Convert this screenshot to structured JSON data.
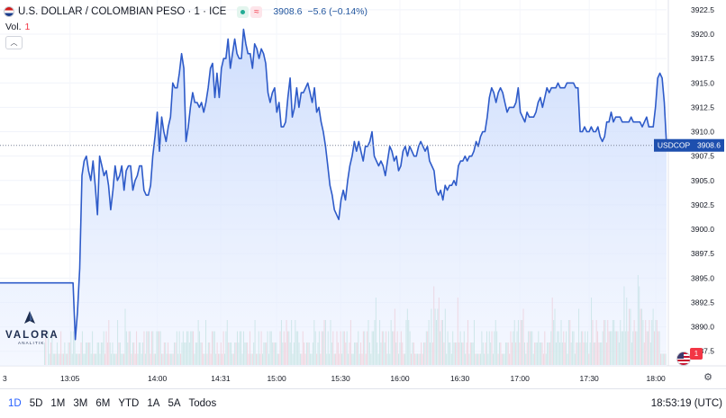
{
  "header": {
    "symbol_title": "U.S. DOLLAR / COLOMBIAN PESO · 1 · ICE",
    "approx_symbol": "≈",
    "last_price": "3908.6",
    "change": "−5.6 (−0.14%)"
  },
  "volume": {
    "label": "Vol.",
    "value": "1"
  },
  "logo": {
    "text": "VALORA",
    "subtext": "ANALITIK"
  },
  "price_tag": {
    "symbol": "USDCOP",
    "value": "3908.6"
  },
  "badge": {
    "count": "1"
  },
  "toolbar": {
    "ranges": [
      "1D",
      "5D",
      "1M",
      "3M",
      "6M",
      "YTD",
      "1A",
      "5A",
      "Todos"
    ],
    "active_range": "1D",
    "clock": "18:53:19 (UTC)"
  },
  "colors": {
    "line": "#2e5bc9",
    "fill": "#dbe7ff",
    "vol_up": "#9fd6c5",
    "vol_down": "#f6a9ae",
    "accent": "#2962ff",
    "tag_bg": "#1e4fae"
  },
  "chart_data": {
    "type": "area",
    "title": "U.S. DOLLAR / COLOMBIAN PESO · 1 · ICE",
    "xlabel": "",
    "ylabel": "",
    "ylim": [
      3886,
      3923.5
    ],
    "grid": true,
    "y_ticks": [
      "3922.5",
      "3920.0",
      "3917.5",
      "3915.0",
      "3912.5",
      "3910.0",
      "3907.5",
      "3905.0",
      "3902.5",
      "3900.0",
      "3897.5",
      "3895.0",
      "3892.5",
      "3890.0",
      "3887.5"
    ],
    "x_ticks": [
      "3",
      "13:05",
      "14:00",
      "14:31",
      "15:00",
      "15:30",
      "16:00",
      "16:30",
      "17:00",
      "17:30",
      "18:00"
    ],
    "last_value": 3908.6,
    "series": [
      {
        "values": [
          3894.5,
          3894.5,
          3894.5,
          3894.5,
          3894.5,
          3894.5,
          3894.5,
          3894.5,
          3894.5,
          3894.5,
          3894.5,
          3894.5,
          3894.5,
          3894.5,
          3894.5,
          3894.5,
          3894.5,
          3894.5,
          3894.5,
          3894.5,
          3894.5,
          3894.5,
          3894.5,
          3894.5,
          3894.5,
          3894.5,
          3894.5,
          3894.5,
          3894.5,
          3894.5,
          3894.5,
          3894.5,
          3894.5,
          3894.5,
          3888.7,
          3891.5,
          3896.0,
          3905.5,
          3907.0,
          3907.5,
          3906.0,
          3905.0,
          3907.0,
          3904.5,
          3901.5,
          3907.5,
          3906.5,
          3905.5,
          3906.0,
          3904.5,
          3902.0,
          3904.0,
          3906.5,
          3905.0,
          3905.5,
          3906.5,
          3904.0,
          3906.0,
          3906.5,
          3906.5,
          3904.0,
          3905.0,
          3905.5,
          3906.5,
          3906.5,
          3904.0,
          3903.5,
          3903.5,
          3904.5,
          3907.5,
          3909.5,
          3912.0,
          3908.0,
          3911.5,
          3910.0,
          3909.0,
          3910.5,
          3911.5,
          3915.0,
          3914.5,
          3914.5,
          3916.0,
          3918.0,
          3916.5,
          3909.0,
          3910.5,
          3912.5,
          3914.0,
          3913.0,
          3913.0,
          3912.5,
          3913.0,
          3912.0,
          3913.0,
          3914.5,
          3916.5,
          3917.0,
          3913.5,
          3916.0,
          3913.5,
          3916.5,
          3917.5,
          3917.5,
          3919.5,
          3916.5,
          3918.0,
          3919.5,
          3918.0,
          3917.5,
          3917.5,
          3920.5,
          3919.0,
          3918.0,
          3918.0,
          3916.5,
          3919.0,
          3918.5,
          3917.5,
          3918.5,
          3918.0,
          3917.0,
          3914.0,
          3913.0,
          3914.0,
          3914.5,
          3912.0,
          3913.0,
          3910.5,
          3910.5,
          3911.0,
          3913.5,
          3915.5,
          3911.5,
          3912.5,
          3914.5,
          3912.5,
          3914.0,
          3914.0,
          3914.5,
          3915.0,
          3914.0,
          3913.0,
          3914.5,
          3912.0,
          3912.5,
          3911.0,
          3910.0,
          3908.5,
          3906.5,
          3904.5,
          3903.5,
          3902.0,
          3901.5,
          3901.0,
          3903.0,
          3904.0,
          3903.0,
          3905.0,
          3906.5,
          3907.5,
          3909.0,
          3908.0,
          3909.0,
          3908.0,
          3907.0,
          3908.5,
          3908.5,
          3909.0,
          3910.0,
          3907.5,
          3907.0,
          3906.5,
          3907.0,
          3906.5,
          3905.5,
          3907.0,
          3908.5,
          3908.0,
          3907.0,
          3907.5,
          3906.0,
          3906.5,
          3908.0,
          3908.5,
          3907.5,
          3908.5,
          3908.0,
          3907.5,
          3907.5,
          3908.5,
          3909.0,
          3908.5,
          3908.0,
          3908.5,
          3907.0,
          3906.5,
          3906.0,
          3904.0,
          3903.5,
          3904.0,
          3903.0,
          3904.5,
          3904.0,
          3904.5,
          3904.5,
          3905.0,
          3904.5,
          3906.5,
          3907.0,
          3907.0,
          3907.5,
          3907.0,
          3907.5,
          3907.5,
          3908.0,
          3909.0,
          3908.5,
          3909.5,
          3910.0,
          3910.0,
          3911.5,
          3913.5,
          3914.5,
          3914.0,
          3913.0,
          3914.0,
          3914.5,
          3914.0,
          3913.0,
          3912.0,
          3912.5,
          3912.5,
          3912.5,
          3913.0,
          3914.5,
          3912.0,
          3911.5,
          3911.0,
          3912.0,
          3911.5,
          3911.5,
          3911.5,
          3912.0,
          3913.0,
          3913.5,
          3912.5,
          3913.5,
          3914.5,
          3914.0,
          3914.5,
          3914.5,
          3914.5,
          3915.0,
          3914.5,
          3914.5,
          3914.5,
          3915.0,
          3915.0,
          3915.0,
          3915.0,
          3914.5,
          3914.5,
          3910.0,
          3910.0,
          3910.5,
          3910.0,
          3910.0,
          3910.5,
          3910.0,
          3910.0,
          3910.5,
          3909.5,
          3909.0,
          3909.5,
          3911.0,
          3911.0,
          3912.0,
          3911.0,
          3911.5,
          3911.5,
          3911.5,
          3911.0,
          3911.0,
          3911.0,
          3911.0,
          3911.5,
          3911.0,
          3911.0,
          3911.0,
          3911.0,
          3910.5,
          3911.0,
          3911.5,
          3910.5,
          3910.5,
          3910.5,
          3912.5,
          3915.5,
          3916.0,
          3915.5,
          3913.0,
          3908.6
        ]
      }
    ],
    "volume": [
      0,
      0,
      0,
      0,
      0,
      0,
      0,
      0,
      0,
      0,
      0,
      0,
      0,
      0,
      0,
      0,
      0,
      0,
      0,
      0,
      0,
      0,
      0,
      0,
      0,
      0,
      0,
      0,
      0,
      0,
      0,
      0,
      0,
      0,
      0,
      2,
      3,
      0,
      3,
      1,
      2,
      3,
      1,
      1,
      1,
      2,
      1,
      1,
      3,
      1,
      1,
      2,
      1,
      1,
      2,
      2,
      3,
      1,
      3,
      3,
      1,
      1,
      1,
      1,
      2,
      3,
      1,
      1,
      2,
      2,
      2,
      2,
      1,
      3,
      1,
      1,
      1,
      2,
      2,
      1,
      2,
      2,
      3,
      1,
      3,
      2,
      4,
      2,
      1,
      2,
      1,
      1,
      1,
      4,
      2,
      2,
      1,
      1,
      1,
      5,
      3,
      2,
      3,
      3,
      1,
      2,
      2,
      1,
      3,
      1,
      2,
      2,
      1,
      2,
      3,
      1,
      3,
      3,
      3,
      1,
      3,
      3,
      1,
      1,
      3,
      3,
      3,
      3,
      1,
      1,
      2,
      2,
      1,
      2,
      1,
      1,
      1,
      1,
      2,
      2,
      3,
      1,
      3,
      1,
      2,
      3,
      2,
      2,
      3,
      3,
      2,
      3,
      3,
      3,
      1,
      2,
      2,
      4,
      3,
      2,
      2,
      1,
      1,
      4,
      1,
      2,
      2,
      1,
      3,
      3,
      3,
      1,
      2,
      1,
      1,
      2,
      1,
      3,
      1,
      3,
      4,
      2,
      2,
      2,
      1,
      1,
      2,
      2,
      3,
      2,
      3,
      3,
      1,
      3,
      2,
      2,
      2,
      1,
      3,
      1,
      1,
      2,
      4,
      1,
      1,
      3,
      1,
      3,
      1,
      2,
      2,
      2,
      3,
      1,
      3,
      3,
      2,
      2,
      2,
      2,
      1,
      1,
      3,
      4,
      2,
      3,
      2,
      4,
      3,
      3,
      2,
      4,
      1,
      2,
      4,
      3,
      3,
      2,
      1,
      1,
      3,
      2,
      1,
      2,
      2,
      2,
      1,
      1,
      2,
      4,
      3,
      1,
      2,
      3,
      1,
      3,
      3,
      4,
      4,
      1,
      3,
      1,
      4,
      2,
      3,
      1,
      1,
      3,
      2,
      1,
      3,
      1,
      3,
      3,
      2,
      3,
      1,
      2,
      4,
      1,
      1,
      2,
      2,
      2,
      3,
      1,
      2,
      1,
      3,
      3,
      1,
      3,
      4,
      2,
      1,
      3,
      3,
      4,
      6,
      2,
      1,
      4,
      2,
      3,
      3,
      2,
      3,
      1,
      3,
      1,
      4,
      3,
      3,
      5,
      2,
      3,
      1,
      2,
      3,
      2,
      1,
      1,
      4,
      5,
      4,
      3,
      1,
      2,
      2,
      1,
      1,
      1,
      1,
      1,
      2,
      1,
      2,
      2,
      3,
      3,
      4,
      2,
      5,
      2,
      7,
      5,
      4,
      5,
      6,
      3,
      4,
      4,
      2,
      5,
      1,
      3,
      2,
      2,
      1,
      3,
      2,
      2,
      2,
      6,
      2,
      3,
      2,
      2,
      3,
      1,
      2,
      4,
      1,
      2,
      2,
      2,
      4,
      1,
      1,
      1,
      1,
      1,
      3,
      2,
      1,
      2,
      3,
      1,
      3,
      2,
      3,
      1,
      3,
      4,
      3,
      1,
      2,
      2,
      1,
      1,
      1,
      2,
      2,
      2,
      1,
      3,
      2,
      3,
      4,
      2,
      3,
      4,
      2,
      4,
      4,
      5,
      2,
      1,
      2,
      3,
      3,
      3,
      3,
      1,
      2,
      2,
      2,
      3,
      2,
      2,
      2,
      1,
      3,
      1,
      2,
      2,
      2,
      3,
      6,
      4,
      5,
      2,
      3,
      3,
      2,
      4,
      2,
      3,
      2,
      3,
      1,
      4,
      4,
      2,
      3,
      3,
      1,
      2,
      2,
      5,
      2,
      3,
      3,
      2,
      3,
      2,
      3,
      1,
      2,
      6,
      4,
      2,
      2,
      4,
      3,
      2,
      2,
      2,
      3,
      4,
      4,
      2,
      4,
      3,
      3,
      3,
      4,
      4,
      3,
      3,
      3,
      2,
      4,
      3,
      3,
      7,
      3,
      6,
      3,
      5,
      5,
      2,
      3,
      4,
      3,
      3,
      8,
      7,
      5,
      5,
      4,
      2,
      4,
      3,
      3,
      4,
      2,
      4,
      5,
      3,
      4,
      4,
      3,
      3,
      1,
      1,
      1,
      1,
      1
    ]
  }
}
